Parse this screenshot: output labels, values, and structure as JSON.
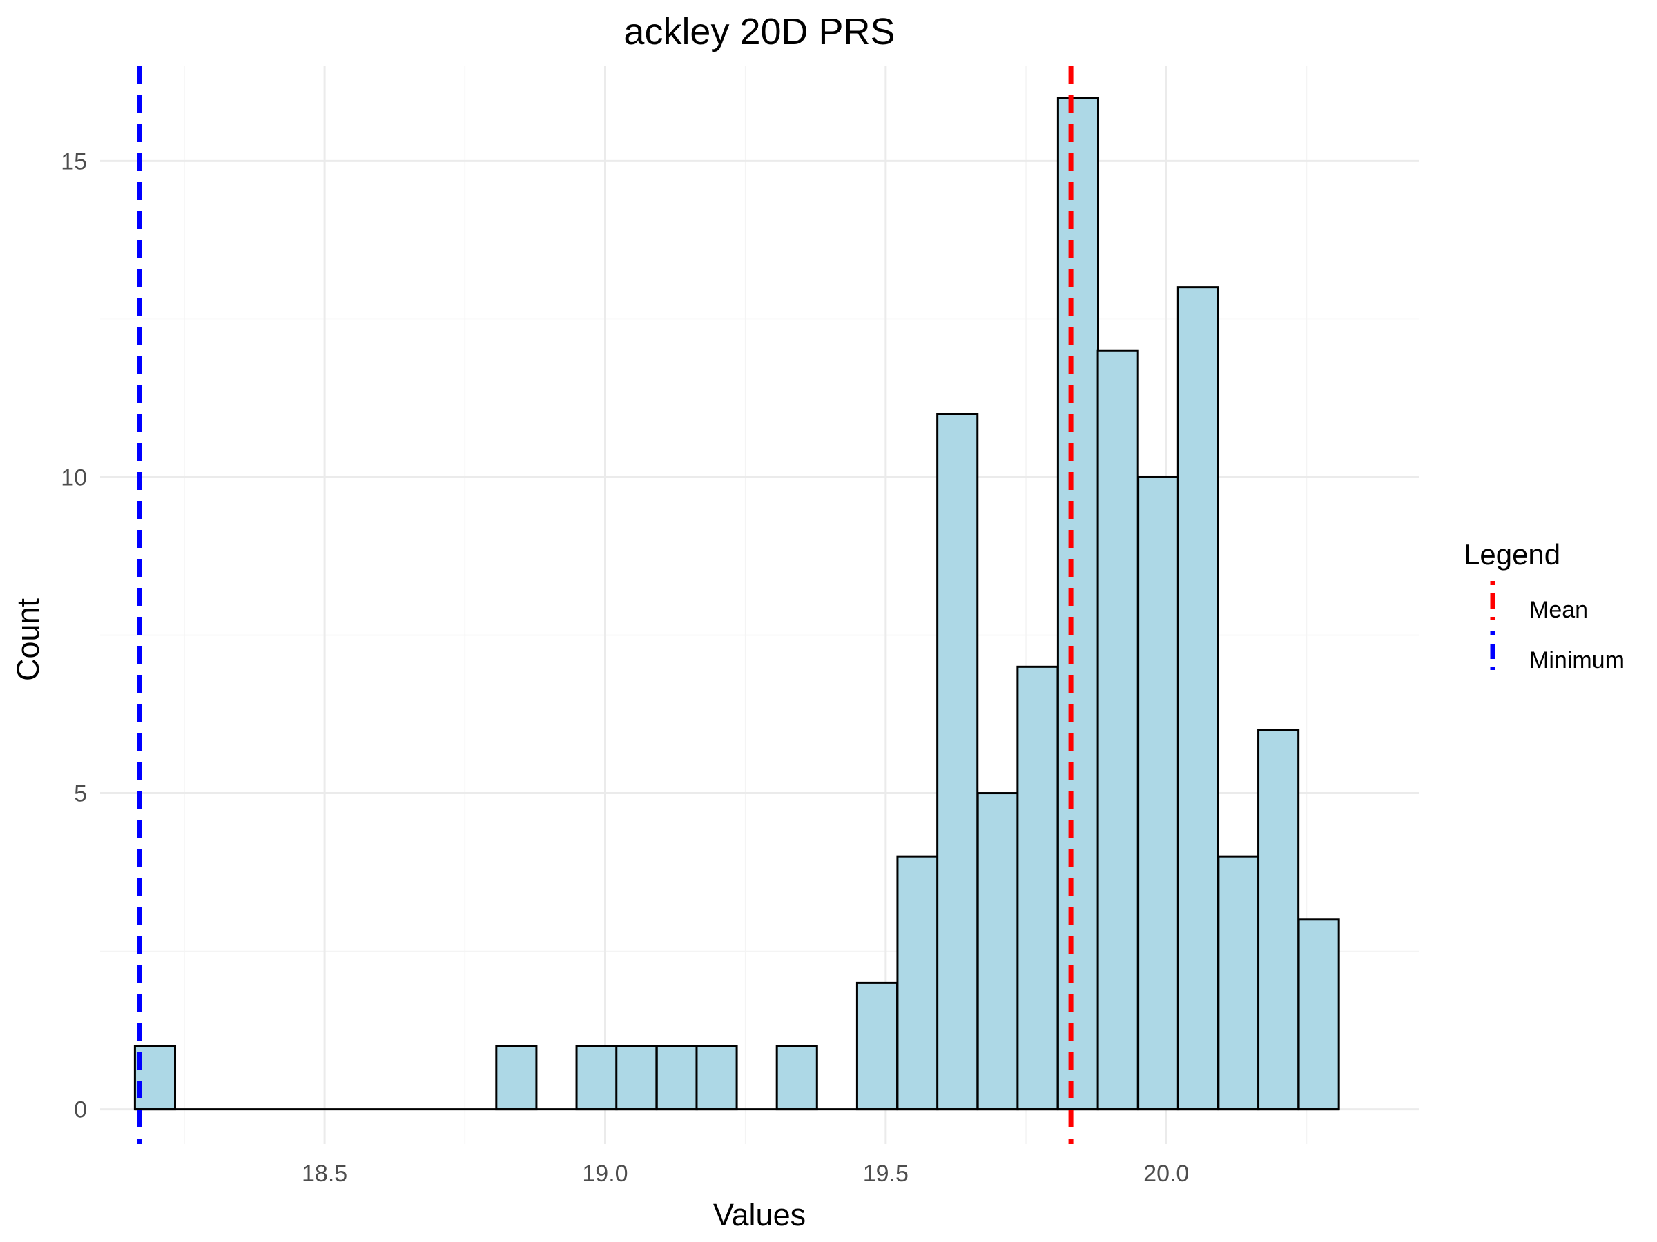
{
  "chart_data": {
    "type": "bar",
    "title": "ackley 20D PRS",
    "xlabel": "Values",
    "ylabel": "Count",
    "xlim": [
      18.1,
      20.45
    ],
    "ylim": [
      -0.55,
      16.5
    ],
    "x_ticks": [
      {
        "value": 18.5,
        "label": "18.5"
      },
      {
        "value": 19.0,
        "label": "19.0"
      },
      {
        "value": 19.5,
        "label": "19.5"
      },
      {
        "value": 20.0,
        "label": "20.0"
      }
    ],
    "x_minor_ticks": [
      18.25,
      18.75,
      19.25,
      19.75,
      20.25
    ],
    "y_ticks": [
      {
        "value": 0,
        "label": "0"
      },
      {
        "value": 5,
        "label": "5"
      },
      {
        "value": 10,
        "label": "10"
      },
      {
        "value": 15,
        "label": "15"
      }
    ],
    "y_minor_ticks": [
      2.5,
      7.5,
      12.5
    ],
    "grid": true,
    "bin_width": 0.0715,
    "bins": [
      {
        "start": 18.162,
        "count": 1
      },
      {
        "start": 18.234,
        "count": 0
      },
      {
        "start": 18.305,
        "count": 0
      },
      {
        "start": 18.377,
        "count": 0
      },
      {
        "start": 18.448,
        "count": 0
      },
      {
        "start": 18.52,
        "count": 0
      },
      {
        "start": 18.591,
        "count": 0
      },
      {
        "start": 18.663,
        "count": 0
      },
      {
        "start": 18.734,
        "count": 0
      },
      {
        "start": 18.806,
        "count": 1
      },
      {
        "start": 18.877,
        "count": 0
      },
      {
        "start": 18.949,
        "count": 1
      },
      {
        "start": 19.02,
        "count": 1
      },
      {
        "start": 19.092,
        "count": 1
      },
      {
        "start": 19.163,
        "count": 1
      },
      {
        "start": 19.235,
        "count": 0
      },
      {
        "start": 19.306,
        "count": 1
      },
      {
        "start": 19.378,
        "count": 0
      },
      {
        "start": 19.449,
        "count": 2
      },
      {
        "start": 19.521,
        "count": 4
      },
      {
        "start": 19.592,
        "count": 11
      },
      {
        "start": 19.664,
        "count": 5
      },
      {
        "start": 19.735,
        "count": 7
      },
      {
        "start": 19.807,
        "count": 16
      },
      {
        "start": 19.878,
        "count": 12
      },
      {
        "start": 19.95,
        "count": 10
      },
      {
        "start": 20.021,
        "count": 13
      },
      {
        "start": 20.093,
        "count": 4
      },
      {
        "start": 20.164,
        "count": 6
      },
      {
        "start": 20.236,
        "count": 3
      }
    ],
    "bar_fill": "#add8e6",
    "bar_stroke": "#000000",
    "reference_lines": [
      {
        "name": "Mean",
        "value": 19.83,
        "color": "#ff0000",
        "dash": true
      },
      {
        "name": "Minimum",
        "value": 18.17,
        "color": "#0000ff",
        "dash": true
      }
    ],
    "legend": {
      "title": "Legend",
      "position": "right",
      "entries": [
        {
          "label": "Mean",
          "color": "#ff0000"
        },
        {
          "label": "Minimum",
          "color": "#0000ff"
        }
      ]
    }
  },
  "colors": {
    "grid_major": "#ebebeb",
    "grid_minor": "#f4f4f4",
    "tick_text": "#4d4d4d"
  }
}
